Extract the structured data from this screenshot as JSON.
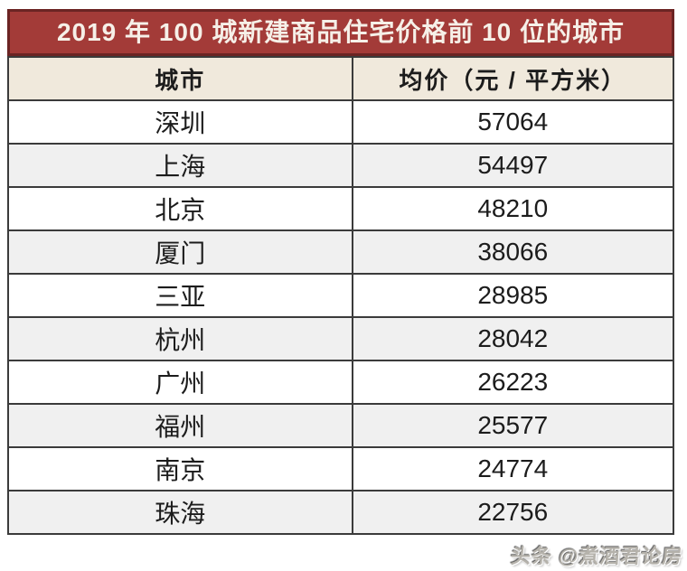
{
  "title": "2019 年 100 城新建商品住宅价格前 10 位的城市",
  "table": {
    "columns": [
      "城市",
      "均价（元 / 平方米）"
    ],
    "rows": [
      {
        "city": "深圳",
        "price": "57064"
      },
      {
        "city": "上海",
        "price": "54497"
      },
      {
        "city": "北京",
        "price": "48210"
      },
      {
        "city": "厦门",
        "price": "38066"
      },
      {
        "city": "三亚",
        "price": "28985"
      },
      {
        "city": "杭州",
        "price": "28042"
      },
      {
        "city": "广州",
        "price": "26223"
      },
      {
        "city": "福州",
        "price": "25577"
      },
      {
        "city": "南京",
        "price": "24774"
      },
      {
        "city": "珠海",
        "price": "22756"
      }
    ]
  },
  "watermark": "头条 @煮酒君论房",
  "colors": {
    "title_bg": "#a33b38",
    "title_border": "#6b2423",
    "title_text": "#f6f0e8",
    "header_bg": "#f0e9dc",
    "row_bg": "#ffffff",
    "row_alt_bg": "#f0f0f0",
    "grid_border": "#3b3b3b",
    "cell_text": "#1c1c1c",
    "watermark_text": "#b5b2ab"
  },
  "chart_data": {
    "type": "table",
    "title": "2019 年 100 城新建商品住宅价格前 10 位的城市",
    "columns": [
      "城市",
      "均价（元 / 平方米）"
    ],
    "categories": [
      "深圳",
      "上海",
      "北京",
      "厦门",
      "三亚",
      "杭州",
      "广州",
      "福州",
      "南京",
      "珠海"
    ],
    "values": [
      57064,
      54497,
      48210,
      38066,
      28985,
      28042,
      26223,
      25577,
      24774,
      22756
    ],
    "ylabel": "均价（元 / 平方米）",
    "legend": [],
    "grid": true
  }
}
